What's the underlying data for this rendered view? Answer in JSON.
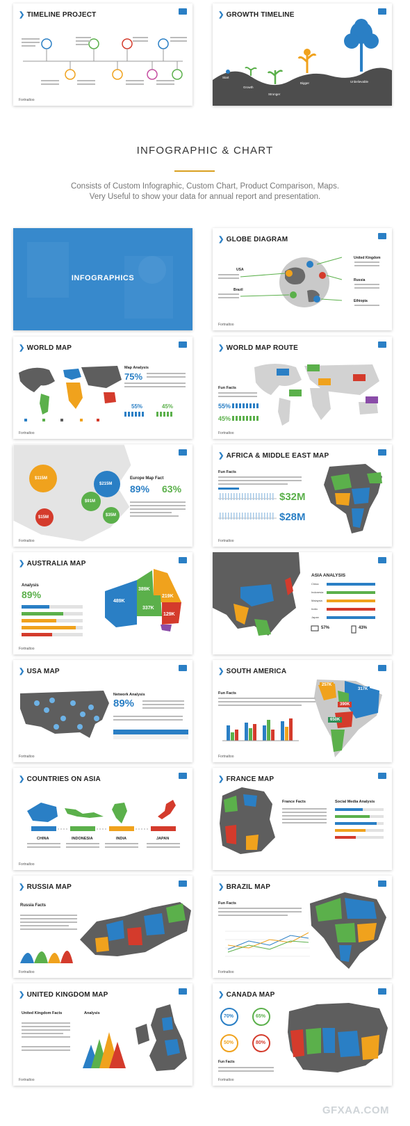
{
  "cards": {
    "timeline_project": {
      "title": "TIMELINE PROJECT",
      "footer": "Fortnaltoo"
    },
    "growth_timeline": {
      "title": "GROWTH TIMELINE",
      "labels": [
        "Start",
        "Growth",
        "Stronger",
        "Bigger",
        "Unbelievable"
      ]
    },
    "infographics": {
      "title": "INFOGRAPHICS"
    },
    "globe_diagram": {
      "title": "GLOBE DIAGRAM",
      "labels": [
        "USA",
        "Brazil",
        "United Kingdom",
        "Russia",
        "Ethiopia"
      ],
      "footer": "Fortnaltoo"
    },
    "world_map": {
      "title": "WORLD MAP",
      "stat1": "75%",
      "stat2": "55%",
      "stat3": "45%",
      "heading": "Map Analysis",
      "footer": "Fortnaltoo"
    },
    "world_map_route": {
      "title": "WORLD MAP ROUTE",
      "heading": "Fun Facts",
      "stat1": "55%",
      "stat2": "45%",
      "footer": "Fortnaltoo"
    },
    "europe_map": {
      "bubbles": [
        "$115M",
        "$215M",
        "$91M",
        "$15M",
        "$35M"
      ],
      "heading": "Europe Map Fact",
      "stat1": "89%",
      "stat2": "63%",
      "footer": "Fortnaltoo"
    },
    "africa_map": {
      "title": "AFRICA & MIDDLE EAST MAP",
      "heading": "Fun Facts",
      "value1": "$32M",
      "value2": "$28M",
      "footer": "Fortnaltoo"
    },
    "australia_map": {
      "title": "AUSTRALIA MAP",
      "heading": "Analysis",
      "stat": "89%",
      "regions": [
        "489K",
        "389K",
        "219K",
        "337K",
        "129K"
      ],
      "footer": "Fortnaltoo"
    },
    "asia_analysis": {
      "title": "ASIA ANALYSIS",
      "rows": [
        "China",
        "Indonesia",
        "Malaysia",
        "India",
        "Japan"
      ],
      "stat1": "57%",
      "stat2": "43%"
    },
    "usa_map": {
      "title": "USA MAP",
      "heading": "Network Analysis",
      "stat": "89%",
      "footer": "Fortnaltoo"
    },
    "south_america": {
      "title": "SOUTH AMERICA",
      "heading": "Fun Facts",
      "bubbles": [
        "257K",
        "317K",
        "390K",
        "650K"
      ],
      "footer": "Fortnaltoo"
    },
    "countries_on_asia": {
      "title": "COUNTRIES ON ASIA",
      "countries": [
        "CHINA",
        "INDONESIA",
        "INDIA",
        "JAPAN"
      ],
      "footer": "Fortnaltoo"
    },
    "france_map": {
      "title": "FRANCE MAP",
      "heading1": "France Facts",
      "heading2": "Social Media Analysis"
    },
    "russia_map": {
      "title": "RUSSIA MAP",
      "heading": "Russia Facts",
      "footer": "Fortnaltoo"
    },
    "brazil_map": {
      "title": "BRAZIL MAP",
      "heading": "Fun Facts",
      "footer": "Fortnaltoo"
    },
    "united_kingdom_map": {
      "title": "UNITED KINGDOM MAP",
      "heading1": "United Kingdom Facts",
      "heading2": "Analysis",
      "footer": "Fortnaltoo"
    },
    "canada_map": {
      "title": "CANADA MAP",
      "stats": [
        "70%",
        "65%",
        "50%",
        "80%"
      ],
      "heading": "Fun Facts",
      "footer": "Fortnaltoo"
    }
  },
  "section": {
    "title": "INFOGRAPHIC & CHART",
    "line1": "Consists of Custom Infographic, Custom Chart, Product Comparison, Maps.",
    "line2": "Very Useful to show your data for annual report and presentation."
  },
  "watermark": "GFXAA.COM",
  "colors": {
    "blue": "#2a7fc5",
    "green": "#5bb04b",
    "orange": "#f0a21d",
    "red": "#d43b2c",
    "grey": "#5e5e5e",
    "gold": "#d9a020"
  }
}
